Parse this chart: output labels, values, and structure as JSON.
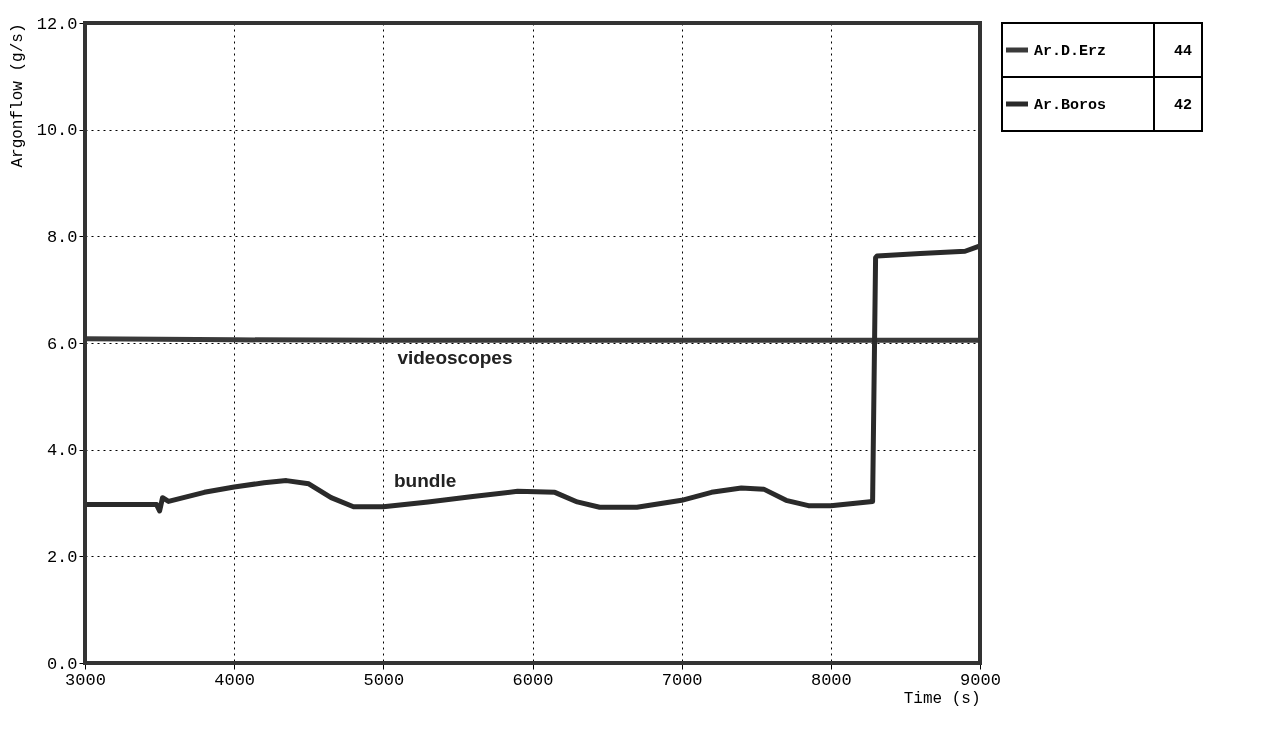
{
  "chart_data": {
    "type": "line",
    "xlabel": "Time (s)",
    "ylabel": "Argonflow (g/s)",
    "xlim": [
      3000,
      9000
    ],
    "xticks": [
      3000,
      4000,
      5000,
      6000,
      7000,
      8000,
      9000
    ],
    "ylim": [
      0,
      12
    ],
    "yticks": [
      {
        "value": 0,
        "label": "0.0"
      },
      {
        "value": 2,
        "label": "2.0"
      },
      {
        "value": 4,
        "label": "4.0"
      },
      {
        "value": 6,
        "label": "6.0"
      },
      {
        "value": 8,
        "label": "8.0"
      },
      {
        "value": 10,
        "label": "10.0"
      },
      {
        "value": 12,
        "label": "12.0"
      }
    ],
    "grid": true,
    "legend": "top right",
    "line_style": "solid",
    "marker": "none",
    "series": [
      {
        "name": "Ar.D.Erz",
        "color": "#3a3a3a",
        "x": [
          3000,
          4000,
          5000,
          6000,
          7000,
          8000,
          9000
        ],
        "values": [
          6.08,
          6.06,
          6.05,
          6.05,
          6.05,
          6.05,
          6.05
        ]
      },
      {
        "name": "Ar.Boros",
        "color": "#2a2a2a",
        "x": [
          3000,
          3300,
          3480,
          3500,
          3520,
          3560,
          3800,
          4000,
          4200,
          4350,
          4500,
          4650,
          4800,
          5000,
          5300,
          5600,
          5900,
          6150,
          6300,
          6450,
          6700,
          7000,
          7200,
          7400,
          7550,
          7700,
          7850,
          8000,
          8280,
          8300,
          8310,
          8600,
          8900,
          9000
        ],
        "values": [
          2.97,
          2.97,
          2.97,
          2.85,
          3.1,
          3.03,
          3.2,
          3.3,
          3.38,
          3.42,
          3.36,
          3.1,
          2.93,
          2.93,
          3.02,
          3.12,
          3.22,
          3.2,
          3.02,
          2.92,
          2.92,
          3.05,
          3.2,
          3.28,
          3.26,
          3.05,
          2.95,
          2.95,
          3.03,
          7.6,
          7.63,
          7.68,
          7.72,
          7.82
        ]
      }
    ],
    "annotations": [
      {
        "text": "videoscopes",
        "x": 5480,
        "y": 6.05
      },
      {
        "text": "bundle",
        "x": 5280,
        "y": 3.04
      },
      "44",
      "42"
    ]
  }
}
